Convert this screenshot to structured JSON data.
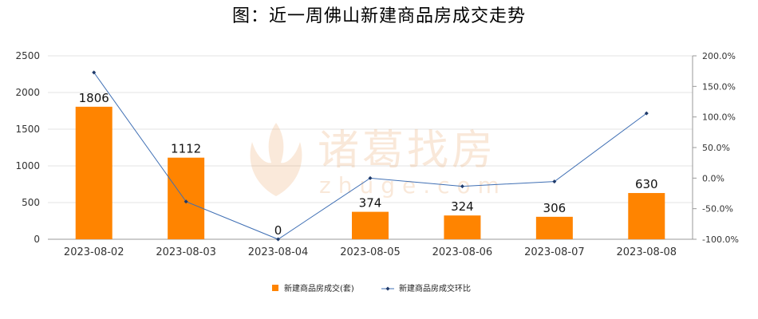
{
  "watermark": {
    "name": "诸葛找房",
    "domain": "zhuge.com"
  },
  "chart_data": {
    "type": "bar",
    "title": "图：近一周佛山新建商品房成交走势",
    "categories": [
      "2023-08-02",
      "2023-08-03",
      "2023-08-04",
      "2023-08-05",
      "2023-08-06",
      "2023-08-07",
      "2023-08-08"
    ],
    "series": [
      {
        "name": "新建商品房成交(套)",
        "type": "bar",
        "axis": "left",
        "color": "#FF8400",
        "values": [
          1806,
          1112,
          0,
          374,
          324,
          306,
          630
        ]
      },
      {
        "name": "新建商品房成交环比",
        "type": "line",
        "axis": "right",
        "color": "#3F6FB4",
        "unit": "%",
        "values": [
          172.8,
          -38.4,
          -100.0,
          0.0,
          -13.4,
          -5.6,
          105.9
        ]
      }
    ],
    "y_left": {
      "min": 0,
      "max": 2500,
      "ticks": [
        0,
        500,
        1000,
        1500,
        2000,
        2500
      ],
      "tick_labels": [
        "0",
        "500",
        "1000",
        "1500",
        "2000",
        "2500"
      ]
    },
    "y_right": {
      "min": -100,
      "max": 200,
      "ticks": [
        -100,
        -50,
        0,
        50,
        100,
        150,
        200
      ],
      "tick_labels": [
        "-100.0%",
        "-50.0%",
        "0.0%",
        "50.0%",
        "100.0%",
        "150.0%",
        "200.0%"
      ]
    },
    "grid": true,
    "legend_position": "bottom-center"
  }
}
